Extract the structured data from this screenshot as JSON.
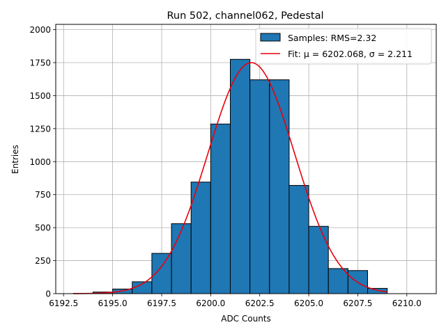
{
  "chart_data": {
    "type": "bar",
    "title": "Run 502, channel062, Pedestal",
    "xlabel": "ADC Counts",
    "ylabel": "Entries",
    "xlim": [
      6192.1,
      6211.5
    ],
    "ylim": [
      0,
      2040
    ],
    "xticks": [
      6192.5,
      6195.0,
      6197.5,
      6200.0,
      6202.5,
      6205.0,
      6207.5,
      6210.0
    ],
    "xtick_labels": [
      "6192.5",
      "6195.0",
      "6197.5",
      "6200.0",
      "6202.5",
      "6205.0",
      "6207.5",
      "6210.0"
    ],
    "yticks": [
      0,
      250,
      500,
      750,
      1000,
      1250,
      1500,
      1750,
      2000
    ],
    "ytick_labels": [
      "0",
      "250",
      "500",
      "750",
      "1000",
      "1250",
      "1500",
      "1750",
      "2000"
    ],
    "grid": true,
    "legend_position": "top-right",
    "bin_edges": [
      6193,
      6194,
      6195,
      6196,
      6197,
      6198,
      6199,
      6200,
      6201,
      6202,
      6203,
      6204,
      6205,
      6206,
      6207,
      6208,
      6209
    ],
    "series": [
      {
        "name": "Samples: RMS=2.32",
        "kind": "histogram",
        "color": "#1f77b4",
        "edgecolor": "#000000",
        "values": [
          2,
          12,
          35,
          90,
          305,
          530,
          845,
          1285,
          1775,
          1620,
          1620,
          820,
          510,
          190,
          175,
          40
        ]
      },
      {
        "name": "Fit: μ = 6202.068, σ = 2.211",
        "kind": "gaussian-fit",
        "color": "#e8000b",
        "mu": 6202.068,
        "sigma": 2.211,
        "amplitude": 1750,
        "x_range": [
          6193,
          6209
        ]
      }
    ]
  }
}
